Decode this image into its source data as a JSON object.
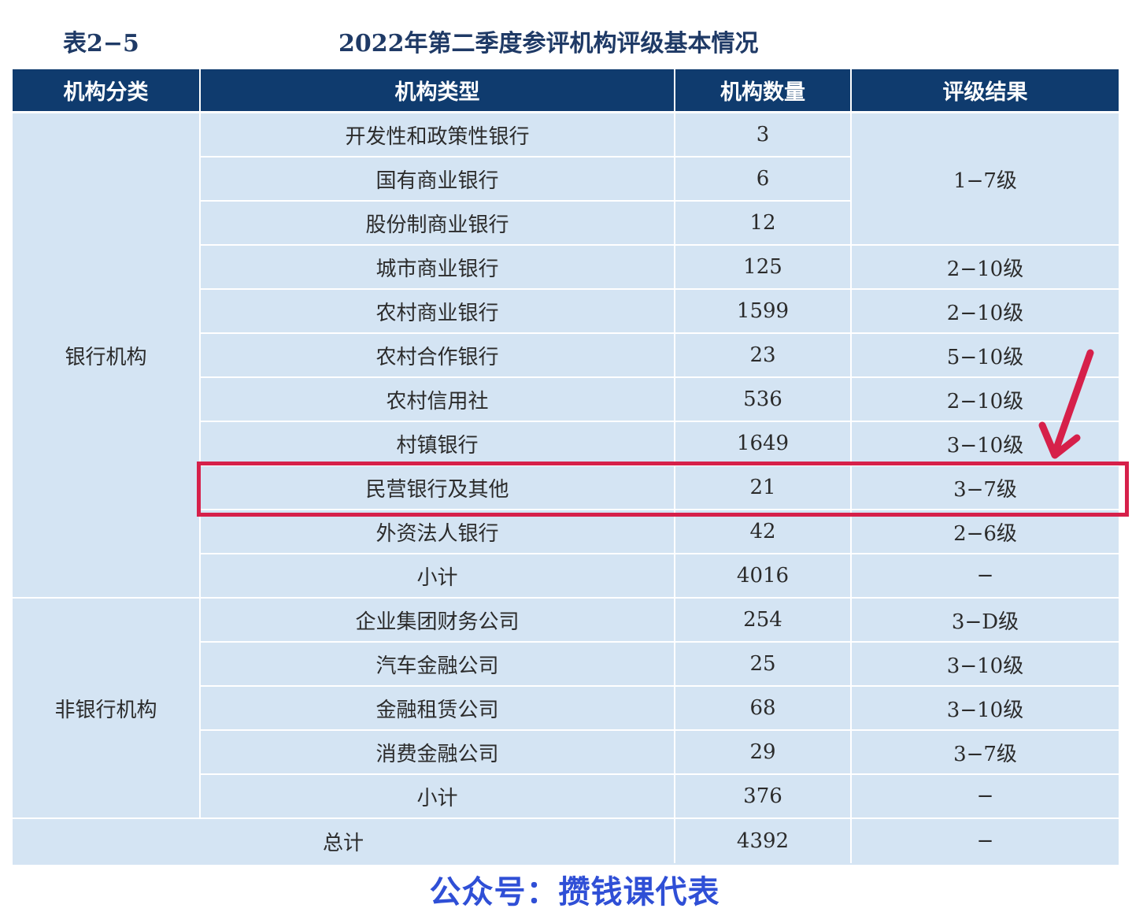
{
  "table_label": "表2−5",
  "table_title": "2022年第二季度参评机构评级基本情况",
  "columns": [
    "机构分类",
    "机构类型",
    "机构数量",
    "评级结果"
  ],
  "groups": {
    "bank": "银行机构",
    "nonbank": "非银行机构"
  },
  "rows": [
    {
      "type": "开发性和政策性银行",
      "count": "3"
    },
    {
      "type": "国有商业银行",
      "count": "6"
    },
    {
      "type": "股份制商业银行",
      "count": "12"
    },
    {
      "type": "城市商业银行",
      "count": "125",
      "rating": "2−10级"
    },
    {
      "type": "农村商业银行",
      "count": "1599",
      "rating": "2−10级"
    },
    {
      "type": "农村合作银行",
      "count": "23",
      "rating": "5−10级"
    },
    {
      "type": "农村信用社",
      "count": "536",
      "rating": "2−10级"
    },
    {
      "type": "村镇银行",
      "count": "1649",
      "rating": "3−10级"
    },
    {
      "type": "民营银行及其他",
      "count": "21",
      "rating": "3−7级"
    },
    {
      "type": "外资法人银行",
      "count": "42",
      "rating": "2−6级"
    },
    {
      "type": "小计",
      "count": "4016",
      "rating": "−"
    },
    {
      "type": "企业集团财务公司",
      "count": "254",
      "rating": "3−D级"
    },
    {
      "type": "汽车金融公司",
      "count": "25",
      "rating": "3−10级"
    },
    {
      "type": "金融租赁公司",
      "count": "68",
      "rating": "3−10级"
    },
    {
      "type": "消费金融公司",
      "count": "29",
      "rating": "3−7级"
    },
    {
      "type": "小计",
      "count": "376",
      "rating": "−"
    }
  ],
  "merged_rating_first3": "1−7级",
  "total": {
    "label": "总计",
    "count": "4392",
    "rating": "−"
  },
  "highlight_color": "#d6204a",
  "header_color": "#0f3b6e",
  "watermark": "公众号：攒钱课代表"
}
